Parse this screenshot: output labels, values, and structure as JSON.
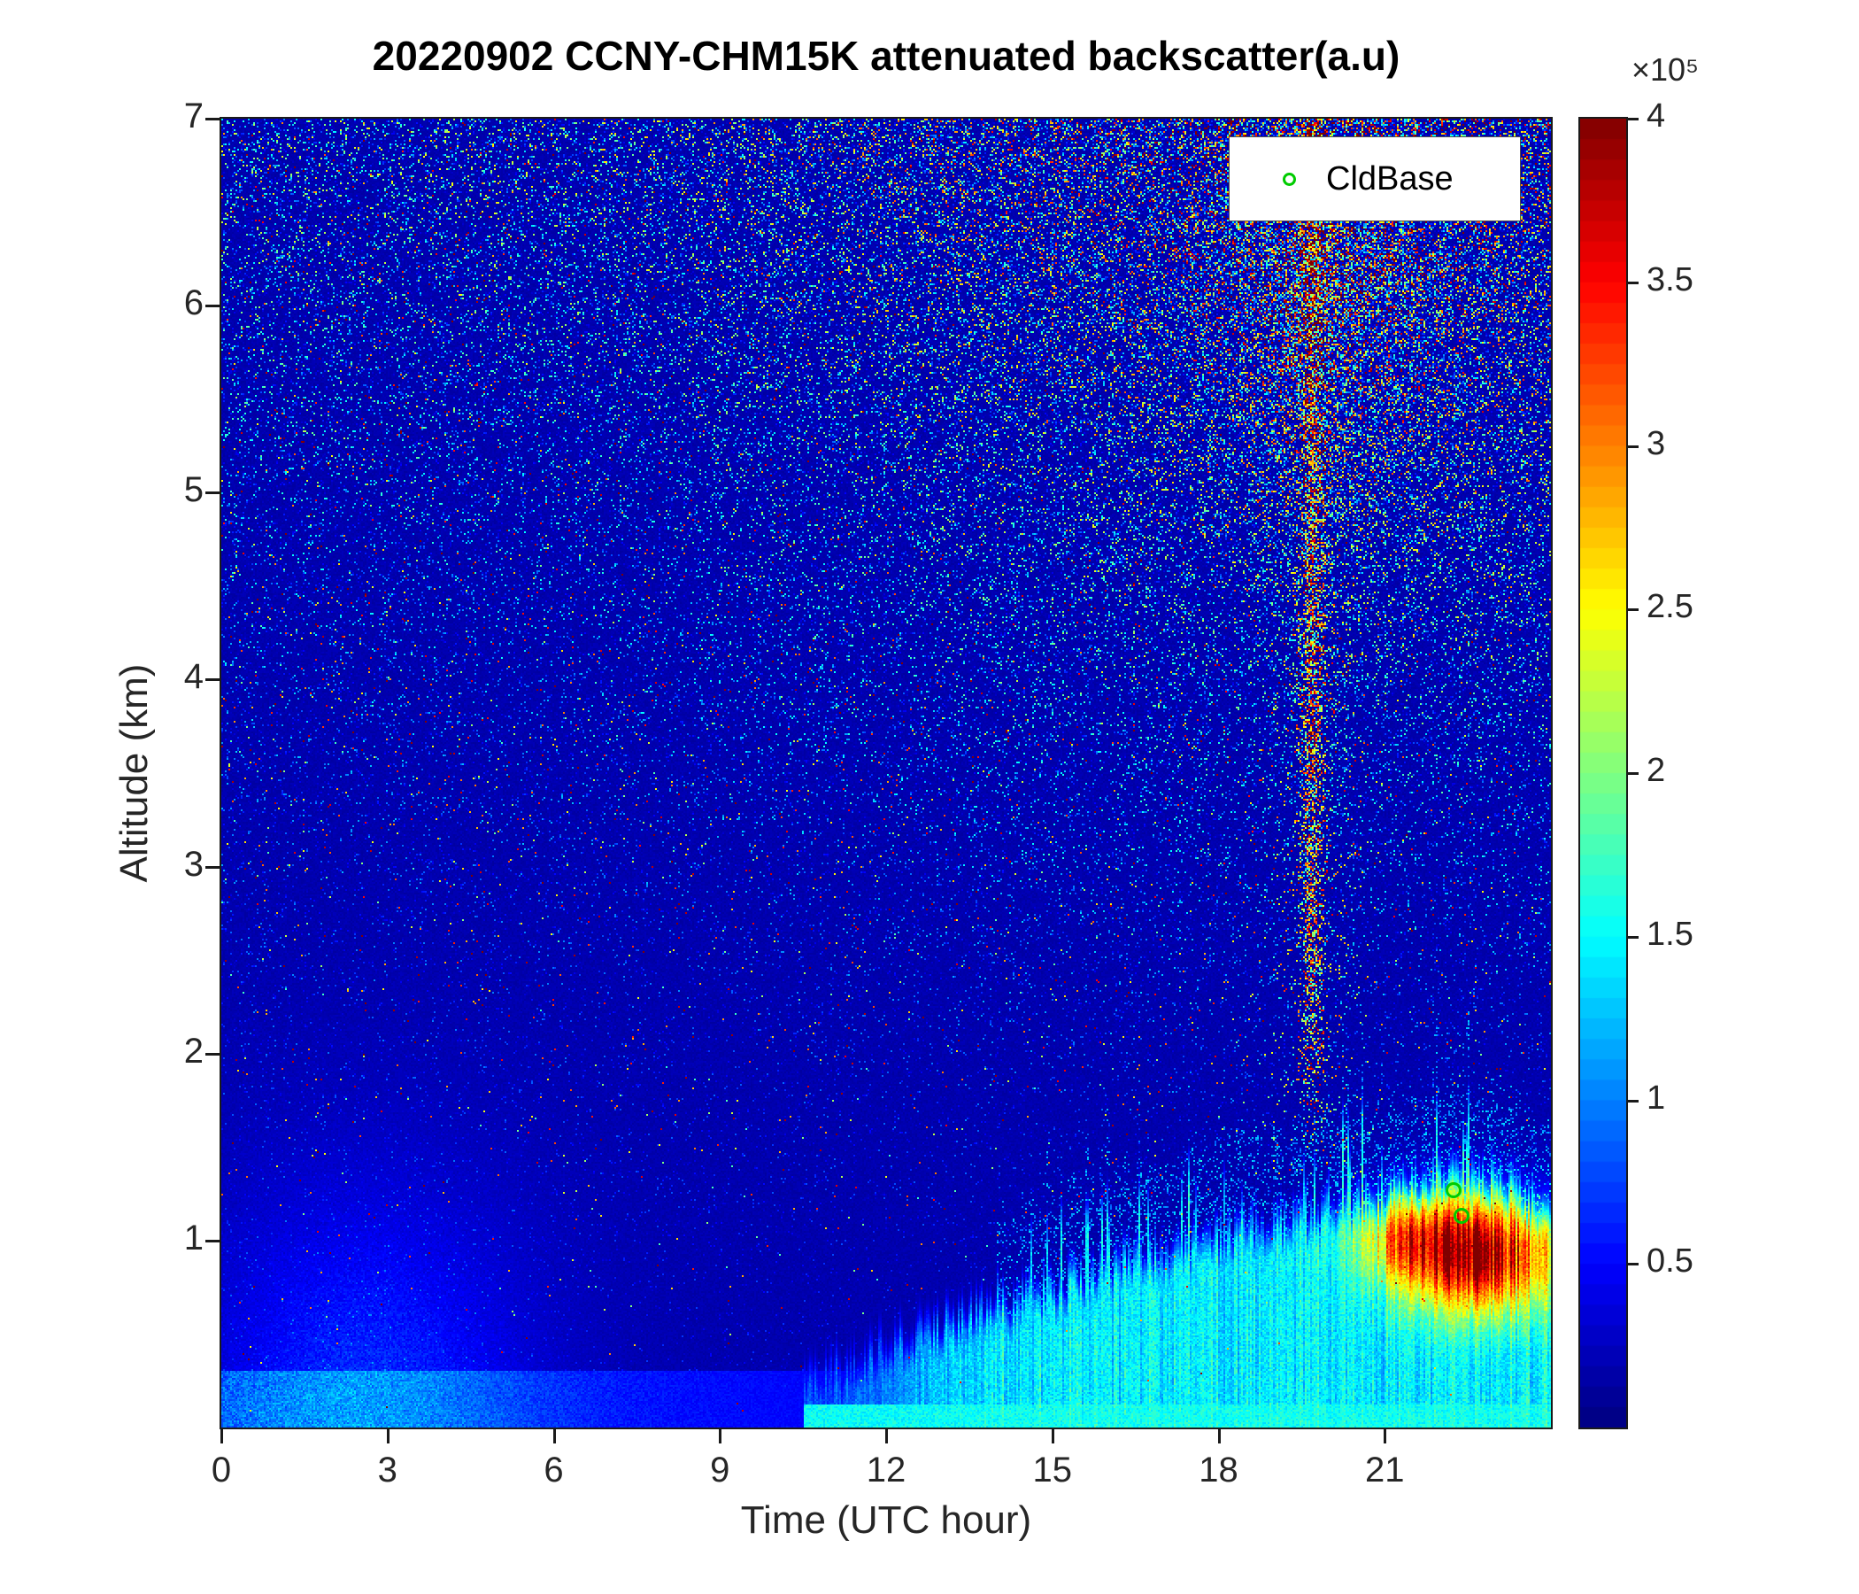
{
  "chart_data": {
    "type": "heatmap",
    "title": "20220902 CCNY-CHM15K attenuated backscatter(a.u)",
    "xlabel": "Time (UTC hour)",
    "ylabel": "Altitude (km)",
    "x_range": [
      0,
      24
    ],
    "y_range": [
      0,
      7
    ],
    "x_ticks": [
      0,
      3,
      6,
      9,
      12,
      15,
      18,
      21
    ],
    "x_tick_labels": [
      "0",
      "3",
      "6",
      "9",
      "12",
      "15",
      "18",
      "21"
    ],
    "y_ticks": [
      1,
      2,
      3,
      4,
      5,
      6,
      7
    ],
    "y_tick_labels": [
      "1",
      "2",
      "3",
      "4",
      "5",
      "6",
      "7"
    ],
    "grid": false,
    "colormap": "jet",
    "colorbar": {
      "min": 0,
      "max": 4,
      "scale_factor": 100000,
      "exponent_label": "×10⁵",
      "ticks": [
        0.5,
        1,
        1.5,
        2,
        2.5,
        3,
        3.5,
        4
      ],
      "tick_labels": [
        "0.5",
        "1",
        "1.5",
        "2",
        "2.5",
        "3",
        "3.5",
        "4"
      ]
    },
    "legend": {
      "label": "CldBase",
      "marker": "circle",
      "marker_color": "#00cc00",
      "position": "top-right"
    },
    "cloud_base_points": [
      {
        "t": 22.25,
        "alt": 1.27
      },
      {
        "t": 22.38,
        "alt": 1.13
      }
    ],
    "features": {
      "seed": 20220902,
      "background_value_e5": 0.18,
      "noise_streak_hour": 19.7,
      "noise_blob": {
        "t": 20.0,
        "alt": 6.3
      },
      "boundary_layer_top_km": [
        [
          0,
          0.2
        ],
        [
          10.5,
          0.2
        ],
        [
          12,
          0.42
        ],
        [
          14,
          0.62
        ],
        [
          16,
          0.82
        ],
        [
          18,
          1.0
        ],
        [
          20,
          1.12
        ],
        [
          21,
          1.22
        ],
        [
          22.3,
          1.33
        ],
        [
          23,
          1.28
        ],
        [
          24,
          1.12
        ]
      ],
      "surface_haze_bump": {
        "t": 2.6,
        "alt": 0.0,
        "value_e5": 0.5
      },
      "aerosol_hot_core": {
        "t": 22.7,
        "alt": 0.92,
        "peak_value_e5": 3.8
      },
      "secondary_core": {
        "t": 21.4,
        "alt": 1.02,
        "peak_value_e5": 2.4
      }
    }
  }
}
